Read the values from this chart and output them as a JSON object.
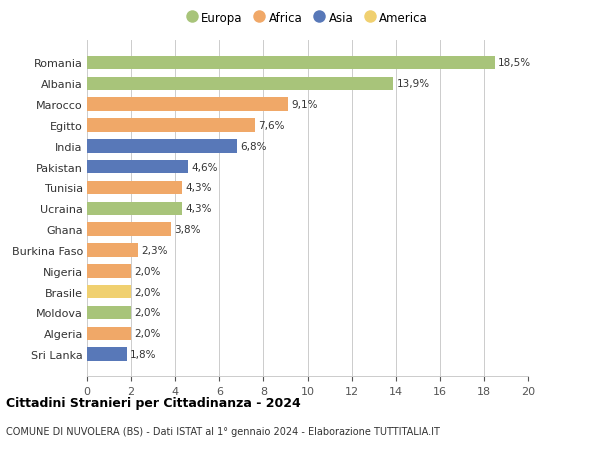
{
  "countries": [
    "Romania",
    "Albania",
    "Marocco",
    "Egitto",
    "India",
    "Pakistan",
    "Tunisia",
    "Ucraina",
    "Ghana",
    "Burkina Faso",
    "Nigeria",
    "Brasile",
    "Moldova",
    "Algeria",
    "Sri Lanka"
  ],
  "values": [
    18.5,
    13.9,
    9.1,
    7.6,
    6.8,
    4.6,
    4.3,
    4.3,
    3.8,
    2.3,
    2.0,
    2.0,
    2.0,
    2.0,
    1.8
  ],
  "labels": [
    "18,5%",
    "13,9%",
    "9,1%",
    "7,6%",
    "6,8%",
    "4,6%",
    "4,3%",
    "4,3%",
    "3,8%",
    "2,3%",
    "2,0%",
    "2,0%",
    "2,0%",
    "2,0%",
    "1,8%"
  ],
  "continents": [
    "Europa",
    "Europa",
    "Africa",
    "Africa",
    "Asia",
    "Asia",
    "Africa",
    "Europa",
    "Africa",
    "Africa",
    "Africa",
    "America",
    "Europa",
    "Africa",
    "Asia"
  ],
  "colors": {
    "Europa": "#a8c47a",
    "Africa": "#f0a868",
    "Asia": "#5878b8",
    "America": "#f0d070"
  },
  "legend_order": [
    "Europa",
    "Africa",
    "Asia",
    "America"
  ],
  "title1": "Cittadini Stranieri per Cittadinanza - 2024",
  "title2": "COMUNE DI NUVOLERA (BS) - Dati ISTAT al 1° gennaio 2024 - Elaborazione TUTTITALIA.IT",
  "xlim": [
    0,
    20
  ],
  "xticks": [
    0,
    2,
    4,
    6,
    8,
    10,
    12,
    14,
    16,
    18,
    20
  ],
  "background_color": "#ffffff",
  "grid_color": "#cccccc"
}
